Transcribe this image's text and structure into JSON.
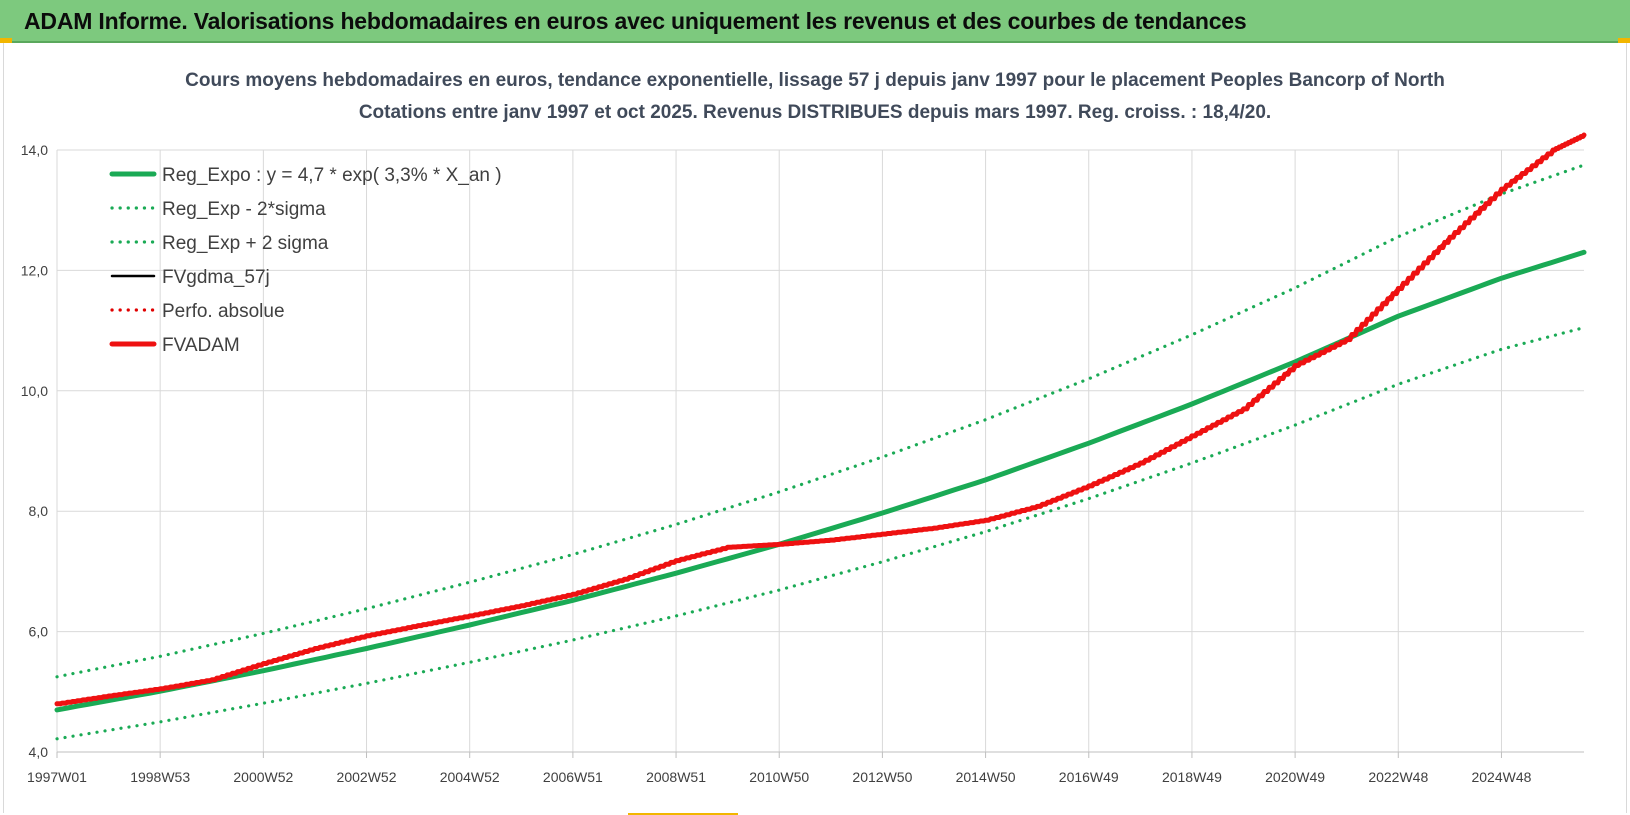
{
  "header": {
    "title": "ADAM Informe. Valorisations hebdomadaires en euros avec uniquement les revenus et des courbes de tendances"
  },
  "colors": {
    "banner": "#7dc97e",
    "reg": "#1aaa55",
    "fv": "#000000",
    "perf": "#e00000",
    "adam": "#ee1111",
    "corner": "#f2b600"
  },
  "chart_data": {
    "type": "line",
    "title_lines": [
      "Cours moyens hebdomadaires en euros, tendance exponentielle, lissage 57 j depuis janv 1997 pour le placement Peoples Bancorp of North",
      "Cotations entre janv 1997 et oct 2025. Revenus DISTRIBUES depuis mars 1997. Reg. croiss. : 18,4/20."
    ],
    "ylim": [
      4.0,
      14.0
    ],
    "y_ticks": [
      "4,0",
      "6,0",
      "8,0",
      "10,0",
      "12,0",
      "14,0"
    ],
    "y_tick_values": [
      4.0,
      6.0,
      8.0,
      10.0,
      12.0,
      14.0
    ],
    "xlim": [
      0,
      29.6
    ],
    "x_ticks": [
      "1997W01",
      "1998W53",
      "2000W52",
      "2002W52",
      "2004W52",
      "2006W51",
      "2008W51",
      "2010W50",
      "2012W50",
      "2014W50",
      "2016W49",
      "2018W49",
      "2020W49",
      "2022W48",
      "2024W48"
    ],
    "x_tick_years": [
      0,
      2,
      4,
      6,
      8,
      10,
      12,
      14,
      16,
      18,
      20,
      22,
      24,
      26,
      28
    ],
    "grid": true,
    "legend_position": "top-left",
    "series": [
      {
        "name": "Reg_Expo : y = 4,7 * exp( 3,3% *  X_an )",
        "style": "solid-thick",
        "color": "#1aaa55",
        "x": [
          0,
          2,
          4,
          6,
          8,
          10,
          12,
          14,
          16,
          18,
          20,
          22,
          24,
          26,
          28,
          29.6
        ],
        "y": [
          4.7,
          5.01,
          5.35,
          5.72,
          6.11,
          6.52,
          6.97,
          7.45,
          7.97,
          8.52,
          9.13,
          9.78,
          10.48,
          11.24,
          11.87,
          12.3
        ]
      },
      {
        "name": "Reg_Exp - 2*sigma",
        "style": "dotted",
        "color": "#1aaa55",
        "x": [
          0,
          2,
          4,
          6,
          8,
          10,
          12,
          14,
          16,
          18,
          20,
          22,
          24,
          26,
          28,
          29.6
        ],
        "y": [
          4.22,
          4.5,
          4.81,
          5.14,
          5.49,
          5.86,
          6.26,
          6.69,
          7.16,
          7.66,
          8.21,
          8.8,
          9.43,
          10.11,
          10.69,
          11.05
        ]
      },
      {
        "name": "Reg_Exp + 2 sigma",
        "style": "dotted",
        "color": "#1aaa55",
        "x": [
          0,
          2,
          4,
          6,
          8,
          10,
          12,
          14,
          16,
          18,
          20,
          22,
          24,
          26,
          28,
          29.6
        ],
        "y": [
          5.25,
          5.59,
          5.97,
          6.38,
          6.82,
          7.28,
          7.78,
          8.32,
          8.9,
          9.52,
          10.2,
          10.93,
          11.71,
          12.56,
          13.27,
          13.75
        ]
      },
      {
        "name": "FVgdma_57j",
        "style": "solid",
        "color": "#000000",
        "x": [
          0,
          1,
          2,
          3,
          4,
          5,
          6,
          7,
          8,
          9,
          10,
          11,
          12,
          13,
          14,
          15,
          16,
          17,
          18,
          19,
          20,
          21,
          22,
          23,
          24,
          25,
          26,
          27,
          28,
          29,
          29.6
        ],
        "y": [
          4.8,
          4.93,
          5.05,
          5.2,
          5.47,
          5.72,
          5.93,
          6.1,
          6.26,
          6.43,
          6.62,
          6.87,
          7.18,
          7.4,
          7.45,
          7.52,
          7.62,
          7.72,
          7.85,
          8.08,
          8.42,
          8.8,
          9.25,
          9.7,
          10.42,
          10.85,
          11.7,
          12.55,
          13.35,
          14.0,
          14.25
        ]
      },
      {
        "name": "Perfo. absolue",
        "style": "dotted",
        "color": "#e00000",
        "x": [
          0,
          1,
          2,
          3,
          4,
          5,
          6,
          7,
          8,
          9,
          10,
          11,
          12,
          13,
          14,
          15,
          16,
          17,
          18,
          19,
          20,
          21,
          22,
          23,
          24,
          25,
          26,
          27,
          28,
          29,
          29.6
        ],
        "y": [
          4.8,
          4.93,
          5.05,
          5.2,
          5.47,
          5.72,
          5.93,
          6.1,
          6.26,
          6.43,
          6.62,
          6.87,
          7.18,
          7.4,
          7.45,
          7.52,
          7.62,
          7.72,
          7.85,
          8.08,
          8.42,
          8.8,
          9.25,
          9.7,
          10.42,
          10.85,
          11.7,
          12.55,
          13.35,
          14.0,
          14.25
        ]
      },
      {
        "name": "FVADAM",
        "style": "solid-thick",
        "color": "#ee1111",
        "x": [
          0,
          1,
          2,
          3,
          4,
          5,
          6,
          7,
          8,
          9,
          10,
          11,
          12,
          13,
          14,
          15,
          16,
          17,
          18,
          19,
          20,
          21,
          22,
          23,
          24,
          25,
          26,
          27,
          28,
          29,
          29.6
        ],
        "y": [
          4.8,
          4.93,
          5.05,
          5.2,
          5.47,
          5.72,
          5.93,
          6.1,
          6.26,
          6.43,
          6.62,
          6.87,
          7.18,
          7.4,
          7.45,
          7.52,
          7.62,
          7.72,
          7.85,
          8.08,
          8.42,
          8.8,
          9.25,
          9.7,
          10.42,
          10.85,
          11.7,
          12.55,
          13.35,
          14.0,
          14.25
        ]
      }
    ]
  }
}
